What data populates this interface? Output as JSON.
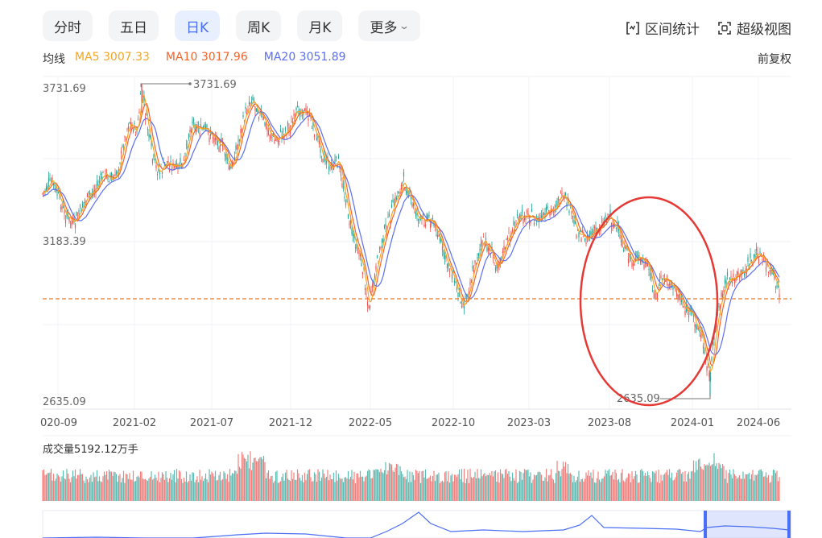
{
  "tabs": [
    {
      "label": "分时",
      "active": false
    },
    {
      "label": "五日",
      "active": false
    },
    {
      "label": "日K",
      "active": true
    },
    {
      "label": "周K",
      "active": false
    },
    {
      "label": "月K",
      "active": false
    },
    {
      "label": "更多",
      "active": false
    }
  ],
  "tools": {
    "range_stats": "区间统计",
    "super_view": "超级视图"
  },
  "ma": {
    "label": "均线",
    "ma5": "MA5 3007.33",
    "ma10": "MA10 3017.96",
    "ma20": "MA20 3051.89",
    "adjust": "前复权"
  },
  "colors": {
    "ma5": "#f5a623",
    "ma10": "#f0642d",
    "ma20": "#5b6ef0",
    "up": "#ef5350",
    "down": "#26a69a",
    "accent": "#4a6ef5",
    "annotation_circle": "#e53935",
    "ref_line": "#f07c1a"
  },
  "price_axis": {
    "max_label": "3731.69",
    "mid_label": "3183.39",
    "min_label": "2635.09",
    "high_marker": "3731.69",
    "low_marker": "2635.09"
  },
  "time_axis": [
    "020-09",
    "2021-02",
    "2021-07",
    "2021-12",
    "2022-05",
    "2022-10",
    "2023-03",
    "2023-08",
    "2024-01",
    "2024-06"
  ],
  "volume": {
    "label": "成交量5192.12万手"
  }
}
